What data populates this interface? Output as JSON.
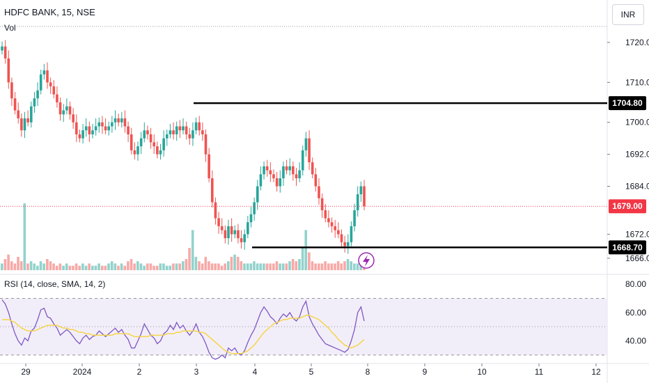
{
  "header": {
    "symbol_title": "HDFC BANK, 15, NSE",
    "volume_label": "Vol",
    "currency": "INR"
  },
  "rsi_panel": {
    "label": "RSI (14, close, SMA, 14, 2)"
  },
  "colors": {
    "up": "#26a69a",
    "down": "#ef5350",
    "rsi_line": "#7e57c2",
    "rsi_ma": "#f5d54a",
    "rsi_band": "#ede7f6",
    "price_line": "#f23645",
    "level_line": "#000000",
    "grid": "#e0e3eb"
  },
  "icons": {
    "lightning": "lightning-bolt-icon"
  },
  "chart_data": [
    {
      "type": "candlestick",
      "title": "HDFC BANK, 15, NSE",
      "price_axis_ticks": [
        1720.0,
        1710.0,
        1700.0,
        1692.0,
        1684.0,
        1672.0,
        1666.0
      ],
      "ylim": [
        1663,
        1724
      ],
      "x_tick_labels": [
        "29",
        "2024",
        "2",
        "3",
        "4",
        "5",
        "8",
        "9",
        "10",
        "11",
        "12"
      ],
      "current_price": "1679.00",
      "horizontal_levels": [
        {
          "value": "1704.80",
          "from": "3"
        },
        {
          "value": "1668.70",
          "from": "4"
        }
      ],
      "close_series": [
        1719,
        1716,
        1710,
        1706,
        1703,
        1701,
        1698,
        1701,
        1700,
        1704,
        1706,
        1708,
        1712,
        1713,
        1710,
        1709,
        1707,
        1705,
        1702,
        1703,
        1704,
        1702,
        1700,
        1697,
        1696,
        1698,
        1699,
        1697,
        1698,
        1699,
        1700,
        1699,
        1698,
        1699,
        1700,
        1701,
        1700,
        1701,
        1699,
        1697,
        1693,
        1692,
        1694,
        1696,
        1698,
        1697,
        1695,
        1694,
        1692,
        1693,
        1696,
        1697,
        1698,
        1697,
        1699,
        1698,
        1699,
        1697,
        1696,
        1698,
        1700,
        1698,
        1697,
        1692,
        1686,
        1680,
        1676,
        1674,
        1673,
        1671,
        1674,
        1672,
        1673,
        1671,
        1670,
        1672,
        1675,
        1677,
        1680,
        1684,
        1687,
        1689,
        1688,
        1687,
        1686,
        1684,
        1686,
        1689,
        1688,
        1689,
        1687,
        1686,
        1688,
        1693,
        1696,
        1690,
        1687,
        1684,
        1681,
        1678,
        1676,
        1675,
        1674,
        1673,
        1672,
        1670,
        1669,
        1670,
        1674,
        1678,
        1682,
        1684,
        1679
      ],
      "volume_series": [
        3,
        5,
        7,
        4,
        3,
        6,
        4,
        5,
        3,
        4,
        3,
        2,
        4,
        3,
        5,
        4,
        3,
        2,
        3,
        2,
        3,
        2,
        2,
        3,
        2,
        3,
        2,
        3,
        2,
        2,
        3,
        2,
        2,
        3,
        4,
        3,
        2,
        3,
        2,
        4,
        5,
        3,
        4,
        3,
        2,
        3,
        3,
        2,
        2,
        3,
        3,
        2,
        2,
        3,
        3,
        3,
        4,
        5,
        10,
        18,
        6,
        4,
        3,
        6,
        4,
        3,
        3,
        3,
        2,
        3,
        4,
        6,
        7,
        6,
        4,
        3,
        3,
        3,
        4,
        3,
        3,
        3,
        3,
        3,
        3,
        4,
        3,
        3,
        3,
        4,
        5,
        4,
        5,
        10,
        18,
        8,
        4,
        3,
        3,
        3,
        4,
        3,
        3,
        3,
        4,
        3,
        4,
        5,
        4,
        3,
        3,
        4,
        3
      ],
      "volume_spikes": [
        {
          "index": 7,
          "value": 30
        }
      ]
    },
    {
      "type": "line",
      "title": "RSI (14, close, SMA, 14, 2)",
      "y_tick_labels": [
        "80.00",
        "60.00",
        "40.00"
      ],
      "ylim": [
        25,
        85
      ],
      "bands": [
        30,
        50,
        70
      ],
      "series": [
        {
          "values": [
            69,
            66,
            60,
            52,
            45,
            40,
            37,
            42,
            40,
            47,
            49,
            55,
            62,
            63,
            57,
            56,
            52,
            49,
            44,
            46,
            48,
            46,
            43,
            40,
            38,
            42,
            44,
            41,
            43,
            44,
            47,
            45,
            43,
            45,
            47,
            49,
            46,
            48,
            44,
            41,
            35,
            35,
            40,
            45,
            52,
            48,
            44,
            42,
            38,
            40,
            45,
            47,
            51,
            48,
            53,
            49,
            51,
            47,
            44,
            47,
            52,
            46,
            43,
            38,
            32,
            28,
            27,
            28,
            30,
            28,
            35,
            33,
            35,
            31,
            30,
            33,
            39,
            44,
            48,
            54,
            60,
            64,
            61,
            57,
            55,
            52,
            56,
            59,
            57,
            60,
            56,
            54,
            57,
            64,
            68,
            57,
            52,
            48,
            44,
            41,
            38,
            37,
            36,
            35,
            34,
            33,
            32,
            34,
            40,
            48,
            60,
            64,
            54
          ]
        },
        {
          "values": [
            55,
            55,
            55,
            54,
            53,
            51,
            49,
            48,
            47,
            47,
            47,
            48,
            49,
            50,
            51,
            51,
            51,
            51,
            50,
            49,
            49,
            48,
            48,
            47,
            46,
            46,
            45,
            45,
            44,
            44,
            44,
            44,
            44,
            44,
            44,
            45,
            45,
            45,
            45,
            45,
            44,
            43,
            43,
            43,
            43,
            43,
            44,
            44,
            44,
            44,
            44,
            45,
            45,
            45,
            46,
            46,
            47,
            47,
            47,
            47,
            47,
            46,
            46,
            45,
            43,
            41,
            39,
            37,
            35,
            33,
            32,
            31,
            31,
            31,
            31,
            32,
            33,
            35,
            37,
            40,
            43,
            46,
            48,
            50,
            52,
            53,
            54,
            55,
            55,
            56,
            56,
            56,
            56,
            57,
            58,
            58,
            57,
            56,
            55,
            53,
            51,
            49,
            46,
            44,
            41,
            39,
            37,
            36,
            35,
            36,
            37,
            39,
            41
          ]
        }
      ]
    }
  ]
}
